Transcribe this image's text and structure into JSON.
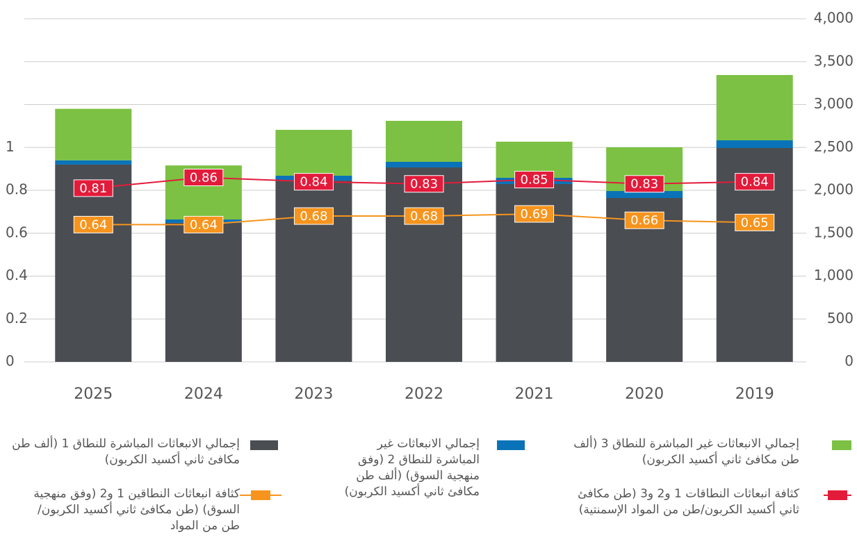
{
  "chart_data": {
    "type": "bar_line",
    "categories": [
      "2025",
      "2024",
      "2023",
      "2022",
      "2021",
      "2020",
      "2019"
    ],
    "series": [
      {
        "name": "إجمالي الانبعاثات المباشرة للنطاق 1 (ألف طن مكافئ ثاني أكسيد الكربون)",
        "color": "#4a4d52",
        "kind": "bar",
        "axis": "y2",
        "values": [
          2300,
          1620,
          2113,
          2267,
          2073,
          1911,
          2494
        ]
      },
      {
        "name": "إجمالي الانبعاثات غير المباشرة للنطاق 2 (وفق منهجية السوق) (ألف طن مكافئ ثاني أكسيد الكربون)",
        "color": "#0a73b8",
        "kind": "bar",
        "axis": "y2",
        "values": [
          50,
          40,
          57,
          65,
          73,
          81,
          89
        ]
      },
      {
        "name": "إجمالي الانبعاثات غير المباشرة للنطاق 3 (ألف طن مكافئ ثاني أكسيد الكربون)",
        "color": "#7cc143",
        "kind": "bar",
        "axis": "y2",
        "values": [
          600,
          630,
          535,
          478,
          421,
          510,
          761
        ]
      },
      {
        "name": "كثافة انبعاثات النطاقات 1 و2 و3 (طن مكافئ ثاني أكسيد الكربون/طن من المواد الإسمنتية)",
        "color": "#e31b3a",
        "kind": "line",
        "values": [
          0.81,
          0.86,
          0.84,
          0.83,
          0.85,
          0.83,
          0.84
        ]
      },
      {
        "name": "كثافة انبعاثات النطاقين 1 و2 (وفق منهجية السوق) (طن مكافئ ثاني أكسيد الكربون/طن من المواد",
        "color": "#f7941d",
        "kind": "line",
        "values": [
          0.64,
          0.64,
          0.68,
          0.68,
          0.69,
          0.66,
          0.65
        ]
      }
    ],
    "ylim": [
      0,
      1.6
    ],
    "yticks": [
      0,
      0.2,
      0.4,
      0.6,
      0.8,
      1
    ],
    "y2lim": [
      0,
      4000
    ],
    "y2ticks": [
      0,
      500,
      {
        "value": 1000,
        "label": "1,000"
      },
      {
        "value": 1500,
        "label": "1,500"
      },
      {
        "value": 2000,
        "label": "2,000"
      },
      {
        "value": 2500,
        "label": "2,500"
      },
      {
        "value": 3000,
        "label": "3,000"
      },
      {
        "value": 3500,
        "label": "3,500"
      },
      {
        "value": 4000,
        "label": "4,000"
      }
    ],
    "grid": true
  }
}
